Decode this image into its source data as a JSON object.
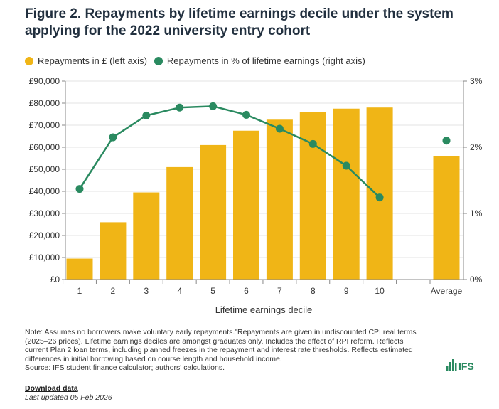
{
  "header": {
    "title": "Figure 2. Repayments by lifetime earnings decile under the system applying for the 2022 university entry cohort"
  },
  "legend": {
    "bars_label": "Repayments in £ (left axis)",
    "line_label": "Repayments in % of lifetime earnings (right axis)"
  },
  "colors": {
    "bar": "#f0b516",
    "line": "#2a8a60",
    "axis": "#888888"
  },
  "chart_data": {
    "type": "bar",
    "xlabel": "Lifetime earnings decile",
    "ylabel": "",
    "categories": [
      "1",
      "2",
      "3",
      "4",
      "5",
      "6",
      "7",
      "8",
      "9",
      "10",
      "Average"
    ],
    "ylim": [
      0,
      90000
    ],
    "y2lim": [
      0,
      3
    ],
    "y_ticks": [
      "£0",
      "£10,000",
      "£20,000",
      "£30,000",
      "£40,000",
      "£50,000",
      "£60,000",
      "£70,000",
      "£80,000",
      "£90,000"
    ],
    "y2_ticks": [
      "0%",
      "1%",
      "2%",
      "3%"
    ],
    "series": [
      {
        "name": "Repayments in £ (left axis)",
        "kind": "bar",
        "axis": "left",
        "values": [
          9500,
          26000,
          39500,
          51000,
          61000,
          67500,
          72500,
          76000,
          77500,
          78000,
          56000
        ]
      },
      {
        "name": "Repayments in % of lifetime earnings (right axis)",
        "kind": "line",
        "axis": "right",
        "values": [
          1.37,
          2.15,
          2.48,
          2.6,
          2.62,
          2.49,
          2.28,
          2.05,
          1.72,
          1.24,
          2.1
        ]
      }
    ],
    "grid": true,
    "legend_position": "top"
  },
  "notes": {
    "note_line": "Note: Assumes no borrowers make voluntary early repayments.\"Repayments are given in undiscounted CPI real terms (2025–26 prices). Lifetime earnings deciles are amongst graduates only. Includes the effect of RPI reform. Reflects current Plan 2 loan terms, including planned freezes in the repayment and interest rate thresholds. Reflects estimated differences in initial borrowing based on course length and household income.",
    "source_prefix": "Source: ",
    "source_link": "IFS student finance calculator",
    "source_suffix": "; authors' calculations."
  },
  "footer": {
    "logo_text": "IFS",
    "download": "Download data",
    "updated": "Last updated 05 Feb 2026"
  }
}
